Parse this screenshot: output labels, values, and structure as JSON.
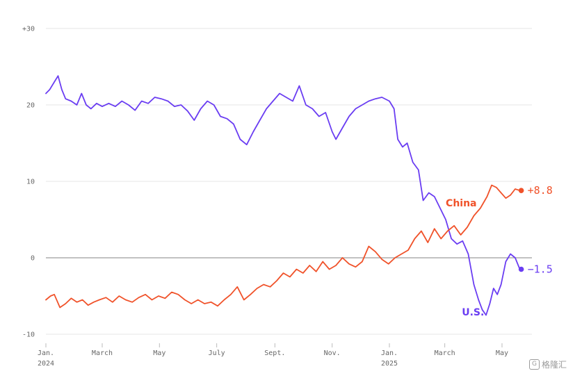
{
  "chart_data": {
    "type": "line",
    "ylim": [
      -10,
      30
    ],
    "xlim": [
      "2024-01-01",
      "2025-05-31"
    ],
    "grid": true,
    "y_ticks": [
      {
        "value": 30,
        "label": "+30"
      },
      {
        "value": 20,
        "label": "20"
      },
      {
        "value": 10,
        "label": "10"
      },
      {
        "value": 0,
        "label": "0"
      },
      {
        "value": -10,
        "label": "-10"
      }
    ],
    "x_ticks": [
      {
        "date": "2024-01-01",
        "label": "Jan.",
        "sublabel": "2024"
      },
      {
        "date": "2024-03-01",
        "label": "March",
        "sublabel": ""
      },
      {
        "date": "2024-05-01",
        "label": "May",
        "sublabel": ""
      },
      {
        "date": "2024-07-01",
        "label": "July",
        "sublabel": ""
      },
      {
        "date": "2024-09-01",
        "label": "Sept.",
        "sublabel": ""
      },
      {
        "date": "2024-11-01",
        "label": "Nov.",
        "sublabel": ""
      },
      {
        "date": "2025-01-01",
        "label": "Jan.",
        "sublabel": "2025"
      },
      {
        "date": "2025-03-01",
        "label": "March",
        "sublabel": ""
      },
      {
        "date": "2025-05-01",
        "label": "May",
        "sublabel": ""
      }
    ],
    "series": [
      {
        "name": "U.S.",
        "color": "#6a3df2",
        "end_label": "−1.5",
        "points": [
          [
            "2024-01-01",
            21.5
          ],
          [
            "2024-01-05",
            22.0
          ],
          [
            "2024-01-10",
            23.0
          ],
          [
            "2024-01-14",
            23.8
          ],
          [
            "2024-01-18",
            22.0
          ],
          [
            "2024-01-22",
            20.8
          ],
          [
            "2024-01-28",
            20.5
          ],
          [
            "2024-02-03",
            20.0
          ],
          [
            "2024-02-08",
            21.5
          ],
          [
            "2024-02-13",
            20.0
          ],
          [
            "2024-02-18",
            19.5
          ],
          [
            "2024-02-24",
            20.2
          ],
          [
            "2024-03-01",
            19.8
          ],
          [
            "2024-03-08",
            20.2
          ],
          [
            "2024-03-15",
            19.8
          ],
          [
            "2024-03-22",
            20.5
          ],
          [
            "2024-03-29",
            20.0
          ],
          [
            "2024-04-05",
            19.3
          ],
          [
            "2024-04-12",
            20.5
          ],
          [
            "2024-04-19",
            20.2
          ],
          [
            "2024-04-26",
            21.0
          ],
          [
            "2024-05-03",
            20.8
          ],
          [
            "2024-05-10",
            20.5
          ],
          [
            "2024-05-17",
            19.8
          ],
          [
            "2024-05-24",
            20.0
          ],
          [
            "2024-05-31",
            19.2
          ],
          [
            "2024-06-07",
            18.0
          ],
          [
            "2024-06-14",
            19.5
          ],
          [
            "2024-06-21",
            20.5
          ],
          [
            "2024-06-28",
            20.0
          ],
          [
            "2024-07-05",
            18.5
          ],
          [
            "2024-07-12",
            18.2
          ],
          [
            "2024-07-19",
            17.5
          ],
          [
            "2024-07-26",
            15.5
          ],
          [
            "2024-08-02",
            14.8
          ],
          [
            "2024-08-09",
            16.5
          ],
          [
            "2024-08-16",
            18.0
          ],
          [
            "2024-08-23",
            19.5
          ],
          [
            "2024-08-30",
            20.5
          ],
          [
            "2024-09-06",
            21.5
          ],
          [
            "2024-09-13",
            21.0
          ],
          [
            "2024-09-20",
            20.5
          ],
          [
            "2024-09-27",
            22.5
          ],
          [
            "2024-10-04",
            20.0
          ],
          [
            "2024-10-11",
            19.5
          ],
          [
            "2024-10-18",
            18.5
          ],
          [
            "2024-10-25",
            19.0
          ],
          [
            "2024-11-01",
            16.5
          ],
          [
            "2024-11-05",
            15.5
          ],
          [
            "2024-11-12",
            17.0
          ],
          [
            "2024-11-19",
            18.5
          ],
          [
            "2024-11-26",
            19.5
          ],
          [
            "2024-12-03",
            20.0
          ],
          [
            "2024-12-10",
            20.5
          ],
          [
            "2024-12-17",
            20.8
          ],
          [
            "2024-12-24",
            21.0
          ],
          [
            "2025-01-01",
            20.5
          ],
          [
            "2025-01-06",
            19.5
          ],
          [
            "2025-01-10",
            15.5
          ],
          [
            "2025-01-15",
            14.5
          ],
          [
            "2025-01-20",
            15.0
          ],
          [
            "2025-01-26",
            12.5
          ],
          [
            "2025-02-01",
            11.5
          ],
          [
            "2025-02-06",
            7.5
          ],
          [
            "2025-02-12",
            8.5
          ],
          [
            "2025-02-18",
            8.0
          ],
          [
            "2025-02-24",
            6.5
          ],
          [
            "2025-03-02",
            5.0
          ],
          [
            "2025-03-08",
            2.5
          ],
          [
            "2025-03-14",
            1.8
          ],
          [
            "2025-03-20",
            2.2
          ],
          [
            "2025-03-26",
            0.5
          ],
          [
            "2025-04-01",
            -3.5
          ],
          [
            "2025-04-06",
            -5.5
          ],
          [
            "2025-04-10",
            -6.8
          ],
          [
            "2025-04-14",
            -7.5
          ],
          [
            "2025-04-18",
            -6.0
          ],
          [
            "2025-04-22",
            -4.0
          ],
          [
            "2025-04-26",
            -4.8
          ],
          [
            "2025-04-30",
            -3.5
          ],
          [
            "2025-05-05",
            -0.5
          ],
          [
            "2025-05-10",
            0.5
          ],
          [
            "2025-05-15",
            0.0
          ],
          [
            "2025-05-20",
            -1.5
          ]
        ]
      },
      {
        "name": "China",
        "color": "#f0522a",
        "end_label": "+8.8",
        "points": [
          [
            "2024-01-01",
            -5.5
          ],
          [
            "2024-01-06",
            -5.0
          ],
          [
            "2024-01-10",
            -4.8
          ],
          [
            "2024-01-16",
            -6.5
          ],
          [
            "2024-01-22",
            -6.0
          ],
          [
            "2024-01-28",
            -5.3
          ],
          [
            "2024-02-03",
            -5.8
          ],
          [
            "2024-02-09",
            -5.5
          ],
          [
            "2024-02-15",
            -6.2
          ],
          [
            "2024-02-21",
            -5.8
          ],
          [
            "2024-02-27",
            -5.5
          ],
          [
            "2024-03-05",
            -5.2
          ],
          [
            "2024-03-12",
            -5.8
          ],
          [
            "2024-03-19",
            -5.0
          ],
          [
            "2024-03-26",
            -5.5
          ],
          [
            "2024-04-02",
            -5.8
          ],
          [
            "2024-04-09",
            -5.2
          ],
          [
            "2024-04-16",
            -4.8
          ],
          [
            "2024-04-23",
            -5.5
          ],
          [
            "2024-04-30",
            -5.0
          ],
          [
            "2024-05-07",
            -5.3
          ],
          [
            "2024-05-14",
            -4.5
          ],
          [
            "2024-05-21",
            -4.8
          ],
          [
            "2024-05-28",
            -5.5
          ],
          [
            "2024-06-04",
            -6.0
          ],
          [
            "2024-06-11",
            -5.5
          ],
          [
            "2024-06-18",
            -6.0
          ],
          [
            "2024-06-25",
            -5.8
          ],
          [
            "2024-07-02",
            -6.3
          ],
          [
            "2024-07-09",
            -5.5
          ],
          [
            "2024-07-16",
            -4.8
          ],
          [
            "2024-07-23",
            -3.8
          ],
          [
            "2024-07-30",
            -5.5
          ],
          [
            "2024-08-06",
            -4.8
          ],
          [
            "2024-08-13",
            -4.0
          ],
          [
            "2024-08-20",
            -3.5
          ],
          [
            "2024-08-27",
            -3.8
          ],
          [
            "2024-09-03",
            -3.0
          ],
          [
            "2024-09-10",
            -2.0
          ],
          [
            "2024-09-17",
            -2.5
          ],
          [
            "2024-09-24",
            -1.5
          ],
          [
            "2024-10-01",
            -2.0
          ],
          [
            "2024-10-08",
            -1.0
          ],
          [
            "2024-10-15",
            -1.8
          ],
          [
            "2024-10-22",
            -0.5
          ],
          [
            "2024-10-29",
            -1.5
          ],
          [
            "2024-11-05",
            -1.0
          ],
          [
            "2024-11-12",
            0.0
          ],
          [
            "2024-11-19",
            -0.8
          ],
          [
            "2024-11-26",
            -1.2
          ],
          [
            "2024-12-03",
            -0.5
          ],
          [
            "2024-12-10",
            1.5
          ],
          [
            "2024-12-17",
            0.8
          ],
          [
            "2024-12-24",
            -0.2
          ],
          [
            "2024-12-31",
            -0.8
          ],
          [
            "2025-01-07",
            0.0
          ],
          [
            "2025-01-14",
            0.5
          ],
          [
            "2025-01-21",
            1.0
          ],
          [
            "2025-01-28",
            2.5
          ],
          [
            "2025-02-04",
            3.5
          ],
          [
            "2025-02-11",
            2.0
          ],
          [
            "2025-02-18",
            3.8
          ],
          [
            "2025-02-25",
            2.5
          ],
          [
            "2025-03-04",
            3.5
          ],
          [
            "2025-03-11",
            4.2
          ],
          [
            "2025-03-18",
            3.0
          ],
          [
            "2025-03-25",
            4.0
          ],
          [
            "2025-04-01",
            5.5
          ],
          [
            "2025-04-08",
            6.5
          ],
          [
            "2025-04-15",
            8.0
          ],
          [
            "2025-04-20",
            9.5
          ],
          [
            "2025-04-25",
            9.2
          ],
          [
            "2025-04-30",
            8.5
          ],
          [
            "2025-05-05",
            7.8
          ],
          [
            "2025-05-10",
            8.2
          ],
          [
            "2025-05-15",
            9.0
          ],
          [
            "2025-05-20",
            8.8
          ]
        ]
      }
    ]
  },
  "watermark": {
    "text": "格隆汇",
    "icon": "g-logo-icon"
  }
}
